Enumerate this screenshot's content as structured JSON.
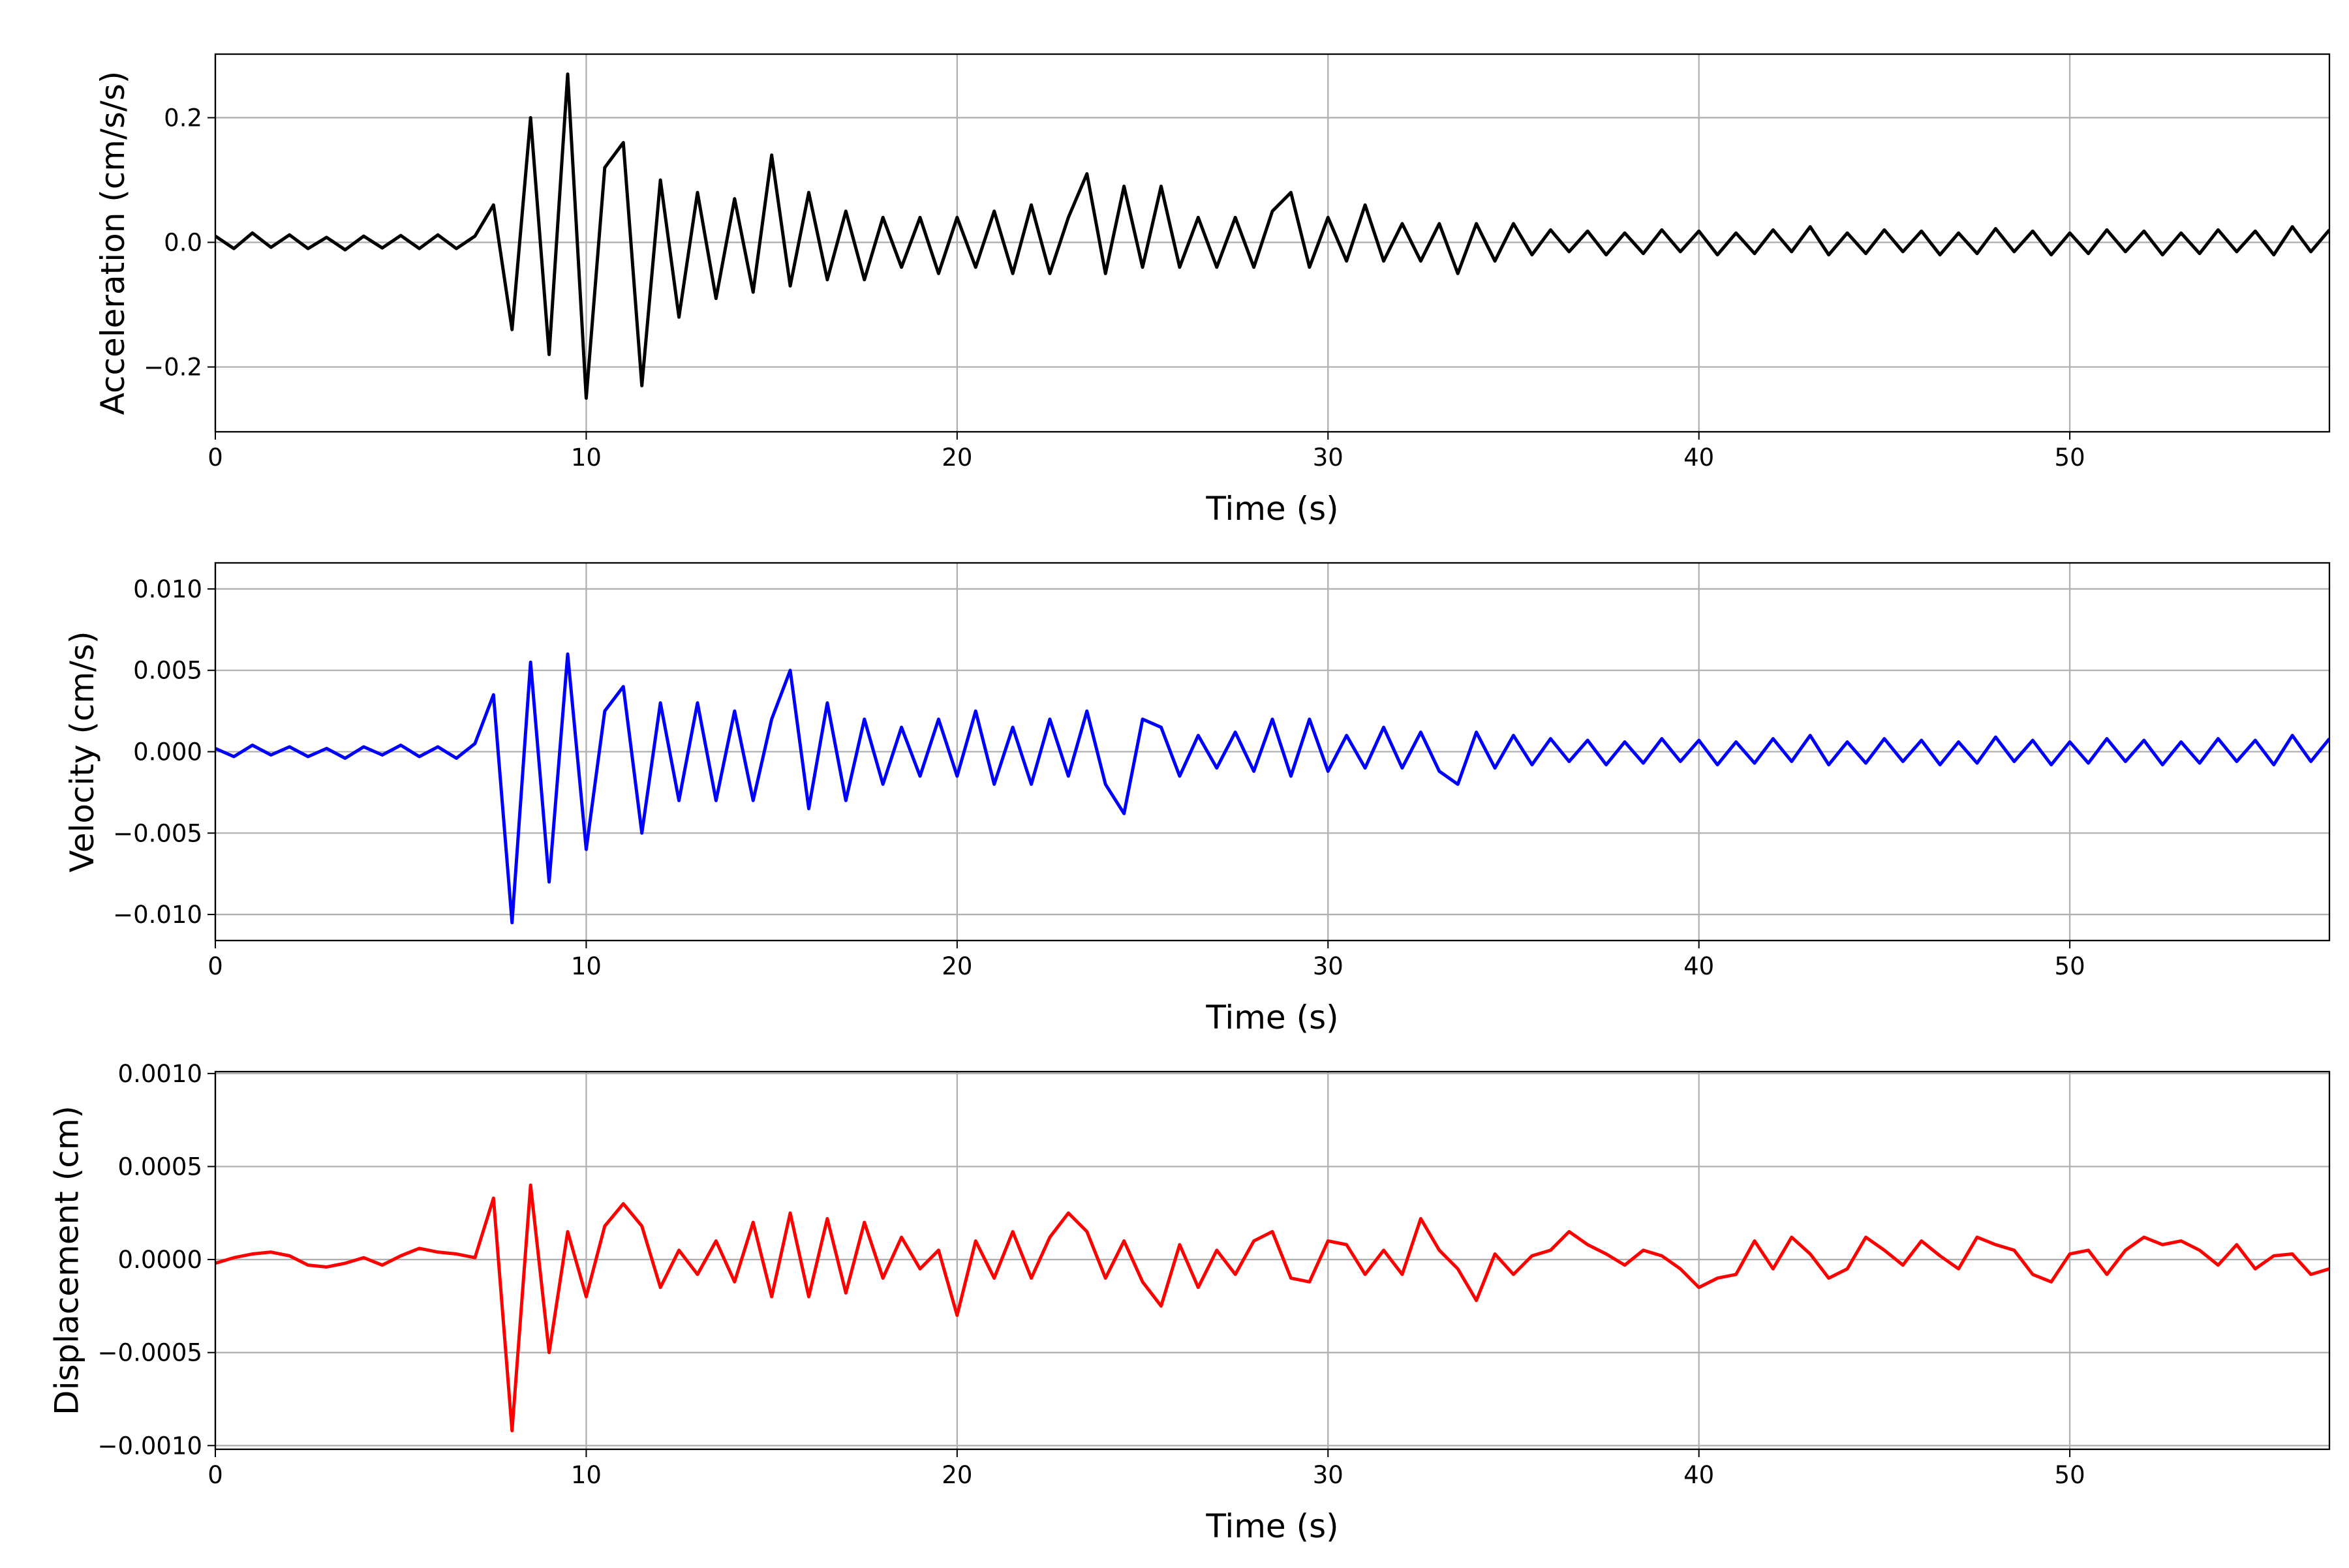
{
  "chart_data": [
    {
      "type": "line",
      "xlabel": "Time (s)",
      "ylabel": "Acceleration (cm/s/s)",
      "color": "#000000",
      "grid": true,
      "xlim": [
        0,
        57
      ],
      "xticks": [
        0,
        10,
        20,
        30,
        40,
        50
      ],
      "ylim": [
        -0.304,
        0.302
      ],
      "yticks": [
        {
          "value": -0.2,
          "label": "−0.2"
        },
        {
          "value": 0,
          "label": "0.0"
        },
        {
          "value": 0.2,
          "label": "0.2"
        }
      ],
      "x": [
        0,
        0.5,
        1,
        1.5,
        2,
        2.5,
        3,
        3.5,
        4,
        4.5,
        5,
        5.5,
        6,
        6.5,
        7,
        7.5,
        8,
        8.5,
        9,
        9.5,
        10,
        10.5,
        11,
        11.5,
        12,
        12.5,
        13,
        13.5,
        14,
        14.5,
        15,
        15.5,
        16,
        16.5,
        17,
        17.5,
        18,
        18.5,
        19,
        19.5,
        20,
        20.5,
        21,
        21.5,
        22,
        22.5,
        23,
        23.5,
        24,
        24.5,
        25,
        25.5,
        26,
        26.5,
        27,
        27.5,
        28,
        28.5,
        29,
        29.5,
        30,
        30.5,
        31,
        31.5,
        32,
        32.5,
        33,
        33.5,
        34,
        34.5,
        35,
        35.5,
        36,
        36.5,
        37,
        37.5,
        38,
        38.5,
        39,
        39.5,
        40,
        40.5,
        41,
        41.5,
        42,
        42.5,
        43,
        43.5,
        44,
        44.5,
        45,
        45.5,
        46,
        46.5,
        47,
        47.5,
        48,
        48.5,
        49,
        49.5,
        50,
        50.5,
        51,
        51.5,
        52,
        52.5,
        53,
        53.5,
        54,
        54.5,
        55,
        55.5,
        56,
        56.5,
        57
      ],
      "values": [
        0.01,
        -0.01,
        0.015,
        -0.008,
        0.012,
        -0.01,
        0.008,
        -0.012,
        0.01,
        -0.009,
        0.011,
        -0.01,
        0.012,
        -0.01,
        0.01,
        0.06,
        -0.14,
        0.2,
        -0.18,
        0.27,
        -0.25,
        0.12,
        0.16,
        -0.23,
        0.1,
        -0.12,
        0.08,
        -0.09,
        0.07,
        -0.08,
        0.14,
        -0.07,
        0.08,
        -0.06,
        0.05,
        -0.06,
        0.04,
        -0.04,
        0.04,
        -0.05,
        0.04,
        -0.04,
        0.05,
        -0.05,
        0.06,
        -0.05,
        0.04,
        0.11,
        -0.05,
        0.09,
        -0.04,
        0.09,
        -0.04,
        0.04,
        -0.04,
        0.04,
        -0.04,
        0.05,
        0.08,
        -0.04,
        0.04,
        -0.03,
        0.06,
        -0.03,
        0.03,
        -0.03,
        0.03,
        -0.05,
        0.03,
        -0.03,
        0.03,
        -0.02,
        0.02,
        -0.015,
        0.018,
        -0.02,
        0.015,
        -0.018,
        0.02,
        -0.015,
        0.018,
        -0.02,
        0.015,
        -0.018,
        0.02,
        -0.015,
        0.025,
        -0.02,
        0.015,
        -0.018,
        0.02,
        -0.015,
        0.018,
        -0.02,
        0.015,
        -0.018,
        0.022,
        -0.015,
        0.018,
        -0.02,
        0.015,
        -0.018,
        0.02,
        -0.015,
        0.018,
        -0.02,
        0.015,
        -0.018,
        0.02,
        -0.015,
        0.018,
        -0.02,
        0.025,
        -0.015,
        0.02
      ]
    },
    {
      "type": "line",
      "xlabel": "Time (s)",
      "ylabel": "Velocity (cm/s)",
      "color": "#0000ff",
      "grid": true,
      "xlim": [
        0,
        57
      ],
      "xticks": [
        0,
        10,
        20,
        30,
        40,
        50
      ],
      "ylim": [
        -0.0116,
        0.0116
      ],
      "yticks": [
        {
          "value": -0.01,
          "label": "−0.010"
        },
        {
          "value": -0.005,
          "label": "−0.005"
        },
        {
          "value": 0,
          "label": "0.000"
        },
        {
          "value": 0.005,
          "label": "0.005"
        },
        {
          "value": 0.01,
          "label": "0.010"
        }
      ],
      "x": [
        0,
        0.5,
        1,
        1.5,
        2,
        2.5,
        3,
        3.5,
        4,
        4.5,
        5,
        5.5,
        6,
        6.5,
        7,
        7.5,
        8,
        8.5,
        9,
        9.5,
        10,
        10.5,
        11,
        11.5,
        12,
        12.5,
        13,
        13.5,
        14,
        14.5,
        15,
        15.5,
        16,
        16.5,
        17,
        17.5,
        18,
        18.5,
        19,
        19.5,
        20,
        20.5,
        21,
        21.5,
        22,
        22.5,
        23,
        23.5,
        24,
        24.5,
        25,
        25.5,
        26,
        26.5,
        27,
        27.5,
        28,
        28.5,
        29,
        29.5,
        30,
        30.5,
        31,
        31.5,
        32,
        32.5,
        33,
        33.5,
        34,
        34.5,
        35,
        35.5,
        36,
        36.5,
        37,
        37.5,
        38,
        38.5,
        39,
        39.5,
        40,
        40.5,
        41,
        41.5,
        42,
        42.5,
        43,
        43.5,
        44,
        44.5,
        45,
        45.5,
        46,
        46.5,
        47,
        47.5,
        48,
        48.5,
        49,
        49.5,
        50,
        50.5,
        51,
        51.5,
        52,
        52.5,
        53,
        53.5,
        54,
        54.5,
        55,
        55.5,
        56,
        56.5,
        57
      ],
      "values": [
        0.0002,
        -0.0003,
        0.0004,
        -0.0002,
        0.0003,
        -0.0003,
        0.0002,
        -0.0004,
        0.0003,
        -0.0002,
        0.0004,
        -0.0003,
        0.0003,
        -0.0004,
        0.0005,
        0.0035,
        -0.0105,
        0.0055,
        -0.008,
        0.006,
        -0.006,
        0.0025,
        0.004,
        -0.005,
        0.003,
        -0.003,
        0.003,
        -0.003,
        0.0025,
        -0.003,
        0.002,
        0.005,
        -0.0035,
        0.003,
        -0.003,
        0.002,
        -0.002,
        0.0015,
        -0.0015,
        0.002,
        -0.0015,
        0.0025,
        -0.002,
        0.0015,
        -0.002,
        0.002,
        -0.0015,
        0.0025,
        -0.002,
        -0.0038,
        0.002,
        0.0015,
        -0.0015,
        0.001,
        -0.001,
        0.0012,
        -0.0012,
        0.002,
        -0.0015,
        0.002,
        -0.0012,
        0.001,
        -0.001,
        0.0015,
        -0.001,
        0.0012,
        -0.0012,
        -0.002,
        0.0012,
        -0.001,
        0.001,
        -0.0008,
        0.0008,
        -0.0006,
        0.0007,
        -0.0008,
        0.0006,
        -0.0007,
        0.0008,
        -0.0006,
        0.0007,
        -0.0008,
        0.0006,
        -0.0007,
        0.0008,
        -0.0006,
        0.001,
        -0.0008,
        0.0006,
        -0.0007,
        0.0008,
        -0.0006,
        0.0007,
        -0.0008,
        0.0006,
        -0.0007,
        0.0009,
        -0.0006,
        0.0007,
        -0.0008,
        0.0006,
        -0.0007,
        0.0008,
        -0.0006,
        0.0007,
        -0.0008,
        0.0006,
        -0.0007,
        0.0008,
        -0.0006,
        0.0007,
        -0.0008,
        0.001,
        -0.0006,
        0.0008
      ]
    },
    {
      "type": "line",
      "xlabel": "Time (s)",
      "ylabel": "Displacement (cm)",
      "color": "#ff0000",
      "grid": true,
      "xlim": [
        0,
        57
      ],
      "xticks": [
        0,
        10,
        20,
        30,
        40,
        50
      ],
      "ylim": [
        -0.00102,
        0.00101
      ],
      "yticks": [
        {
          "value": -0.001,
          "label": "−0.0010"
        },
        {
          "value": -0.0005,
          "label": "−0.0005"
        },
        {
          "value": 0,
          "label": "0.0000"
        },
        {
          "value": 0.0005,
          "label": "0.0005"
        },
        {
          "value": 0.001,
          "label": "0.0010"
        }
      ],
      "x": [
        0,
        0.5,
        1,
        1.5,
        2,
        2.5,
        3,
        3.5,
        4,
        4.5,
        5,
        5.5,
        6,
        6.5,
        7,
        7.5,
        8,
        8.5,
        9,
        9.5,
        10,
        10.5,
        11,
        11.5,
        12,
        12.5,
        13,
        13.5,
        14,
        14.5,
        15,
        15.5,
        16,
        16.5,
        17,
        17.5,
        18,
        18.5,
        19,
        19.5,
        20,
        20.5,
        21,
        21.5,
        22,
        22.5,
        23,
        23.5,
        24,
        24.5,
        25,
        25.5,
        26,
        26.5,
        27,
        27.5,
        28,
        28.5,
        29,
        29.5,
        30,
        30.5,
        31,
        31.5,
        32,
        32.5,
        33,
        33.5,
        34,
        34.5,
        35,
        35.5,
        36,
        36.5,
        37,
        37.5,
        38,
        38.5,
        39,
        39.5,
        40,
        40.5,
        41,
        41.5,
        42,
        42.5,
        43,
        43.5,
        44,
        44.5,
        45,
        45.5,
        46,
        46.5,
        47,
        47.5,
        48,
        48.5,
        49,
        49.5,
        50,
        50.5,
        51,
        51.5,
        52,
        52.5,
        53,
        53.5,
        54,
        54.5,
        55,
        55.5,
        56,
        56.5,
        57
      ],
      "values": [
        -2e-05,
        1e-05,
        3e-05,
        4e-05,
        2e-05,
        -3e-05,
        -4e-05,
        -2e-05,
        1e-05,
        -3e-05,
        2e-05,
        6e-05,
        4e-05,
        3e-05,
        1e-05,
        0.00033,
        -0.00092,
        0.0004,
        -0.0005,
        0.00015,
        -0.0002,
        0.00018,
        0.0003,
        0.00018,
        -0.00015,
        5e-05,
        -8e-05,
        0.0001,
        -0.00012,
        0.0002,
        -0.0002,
        0.00025,
        -0.0002,
        0.00022,
        -0.00018,
        0.0002,
        -0.0001,
        0.00012,
        -5e-05,
        5e-05,
        -0.0003,
        0.0001,
        -0.0001,
        0.00015,
        -0.0001,
        0.00012,
        0.00025,
        0.00015,
        -0.0001,
        0.0001,
        -0.00012,
        -0.00025,
        8e-05,
        -0.00015,
        5e-05,
        -8e-05,
        0.0001,
        0.00015,
        -0.0001,
        -0.00012,
        0.0001,
        8e-05,
        -8e-05,
        5e-05,
        -8e-05,
        0.00022,
        5e-05,
        -5e-05,
        -0.00022,
        3e-05,
        -8e-05,
        2e-05,
        5e-05,
        0.00015,
        8e-05,
        3e-05,
        -3e-05,
        5e-05,
        2e-05,
        -5e-05,
        -0.00015,
        -0.0001,
        -8e-05,
        0.0001,
        -5e-05,
        0.00012,
        3e-05,
        -0.0001,
        -5e-05,
        0.00012,
        5e-05,
        -3e-05,
        0.0001,
        2e-05,
        -5e-05,
        0.00012,
        8e-05,
        5e-05,
        -8e-05,
        -0.00012,
        3e-05,
        5e-05,
        -8e-05,
        5e-05,
        0.00012,
        8e-05,
        0.0001,
        5e-05,
        -3e-05,
        8e-05,
        -5e-05,
        2e-05,
        3e-05,
        -8e-05,
        -5e-05
      ]
    }
  ]
}
